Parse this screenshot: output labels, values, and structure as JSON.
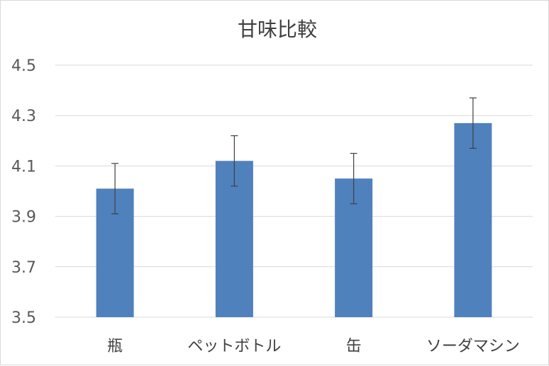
{
  "chart_data": {
    "type": "bar",
    "title": "甘味比較",
    "xlabel": "",
    "ylabel": "",
    "categories": [
      "瓶",
      "ペットボトル",
      "缶",
      "ソーダマシン"
    ],
    "values": [
      4.01,
      4.12,
      4.05,
      4.27
    ],
    "error": [
      0.1,
      0.1,
      0.1,
      0.1
    ],
    "ylim": [
      3.5,
      4.5
    ],
    "yticks": [
      "4.5",
      "4.3",
      "4.1",
      "3.9",
      "3.7",
      "3.5"
    ],
    "ytick_values": [
      4.5,
      4.3,
      4.1,
      3.9,
      3.7,
      3.5
    ],
    "grid": true,
    "legend": "none",
    "bar_color": "#4f81bd",
    "error_color": "#404040",
    "grid_color": "#d9d9d9"
  }
}
